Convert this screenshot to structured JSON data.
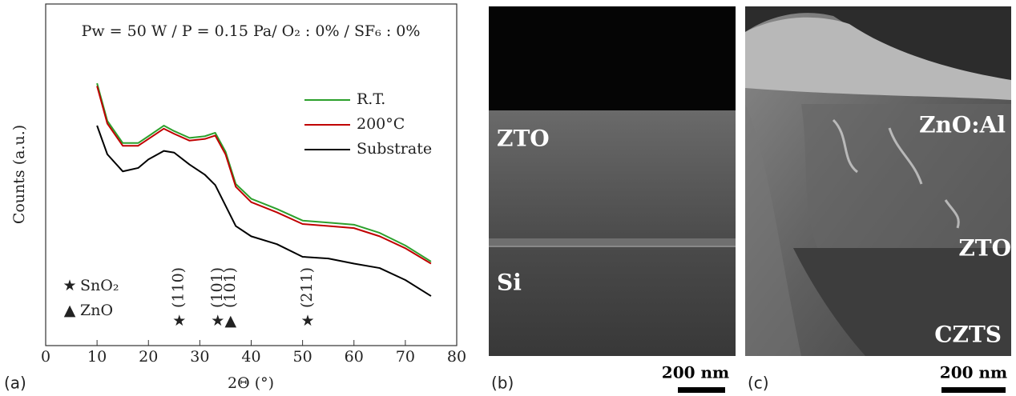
{
  "chart_data": {
    "type": "line",
    "title": "Pw = 50 W / P = 0.15 Pa/  O₂ : 0% / SF₆ : 0%",
    "panel_label": "(a)",
    "x_label": "2Θ (°)",
    "y_label": "Counts (a.u.)",
    "x": [
      10,
      12,
      15,
      18,
      20,
      23,
      25,
      28,
      31,
      33,
      35,
      37,
      40,
      45,
      50,
      55,
      60,
      65,
      70,
      75
    ],
    "series": [
      {
        "name": "R.T.",
        "color": "#2ca02c",
        "values": [
          76.8,
          65.8,
          59.3,
          59.3,
          61.3,
          64.4,
          62.8,
          60.8,
          61.3,
          62.3,
          56.8,
          47.3,
          43,
          40,
          36.6,
          36,
          35.4,
          33,
          29.3,
          24.6
        ]
      },
      {
        "name": "200°C",
        "color": "#c00000",
        "values": [
          76,
          65,
          58.5,
          58.5,
          60.5,
          63.5,
          62,
          60,
          60.5,
          61.5,
          56,
          46.5,
          42,
          39,
          35.6,
          35,
          34.4,
          32,
          28.5,
          24
        ]
      },
      {
        "name": "Substrate",
        "color": "#000000",
        "values": [
          64.4,
          56,
          51,
          52,
          54.5,
          57,
          56.5,
          53,
          50,
          47,
          41,
          35,
          32,
          29.7,
          26,
          25.5,
          24,
          22.7,
          19.2,
          14.5
        ]
      }
    ],
    "phases": [
      {
        "name": "SnO₂",
        "symbol": "★",
        "peaks": [
          {
            "x": 26,
            "label": "(110)"
          },
          {
            "x": 33.5,
            "label": "(101)"
          },
          {
            "x": 51,
            "label": "(211)"
          }
        ]
      },
      {
        "name": "ZnO",
        "symbol": "▲",
        "peaks": [
          {
            "x": 36,
            "label": "(101)"
          }
        ]
      }
    ],
    "xlim": [
      0,
      80
    ],
    "xticks": [
      0,
      10,
      20,
      30,
      40,
      50,
      60,
      70,
      80
    ],
    "ylim": [
      0,
      100
    ]
  },
  "images": [
    {
      "panel_label": "(b)",
      "labels": [
        "ZTO",
        "Si"
      ],
      "scale_bar": "200 nm"
    },
    {
      "panel_label": "(c)",
      "labels": [
        "ZnO:Al",
        "ZTO",
        "CZTS"
      ],
      "scale_bar": "200 nm"
    }
  ]
}
